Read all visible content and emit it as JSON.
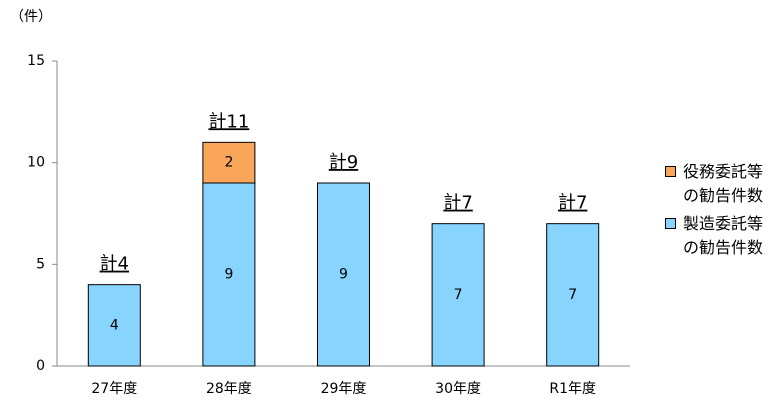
{
  "chart_data": {
    "type": "stacked-bar",
    "y_label": "（件）",
    "categories": [
      "27年度",
      "28年度",
      "29年度",
      "30年度",
      "R1年度"
    ],
    "series": [
      {
        "name": "製造委託等の勧告件数",
        "color": "#87d5ff",
        "values": [
          4,
          9,
          9,
          7,
          7
        ]
      },
      {
        "name": "役務委託等の勧告件数",
        "color": "#f9a65a",
        "values": [
          null,
          2,
          null,
          null,
          null
        ]
      }
    ],
    "totals": [
      "計4",
      "計11",
      "計9",
      "計7",
      "計7"
    ],
    "ylim": [
      0,
      15
    ],
    "yticks": [
      0,
      5,
      10,
      15
    ],
    "grid": false
  }
}
